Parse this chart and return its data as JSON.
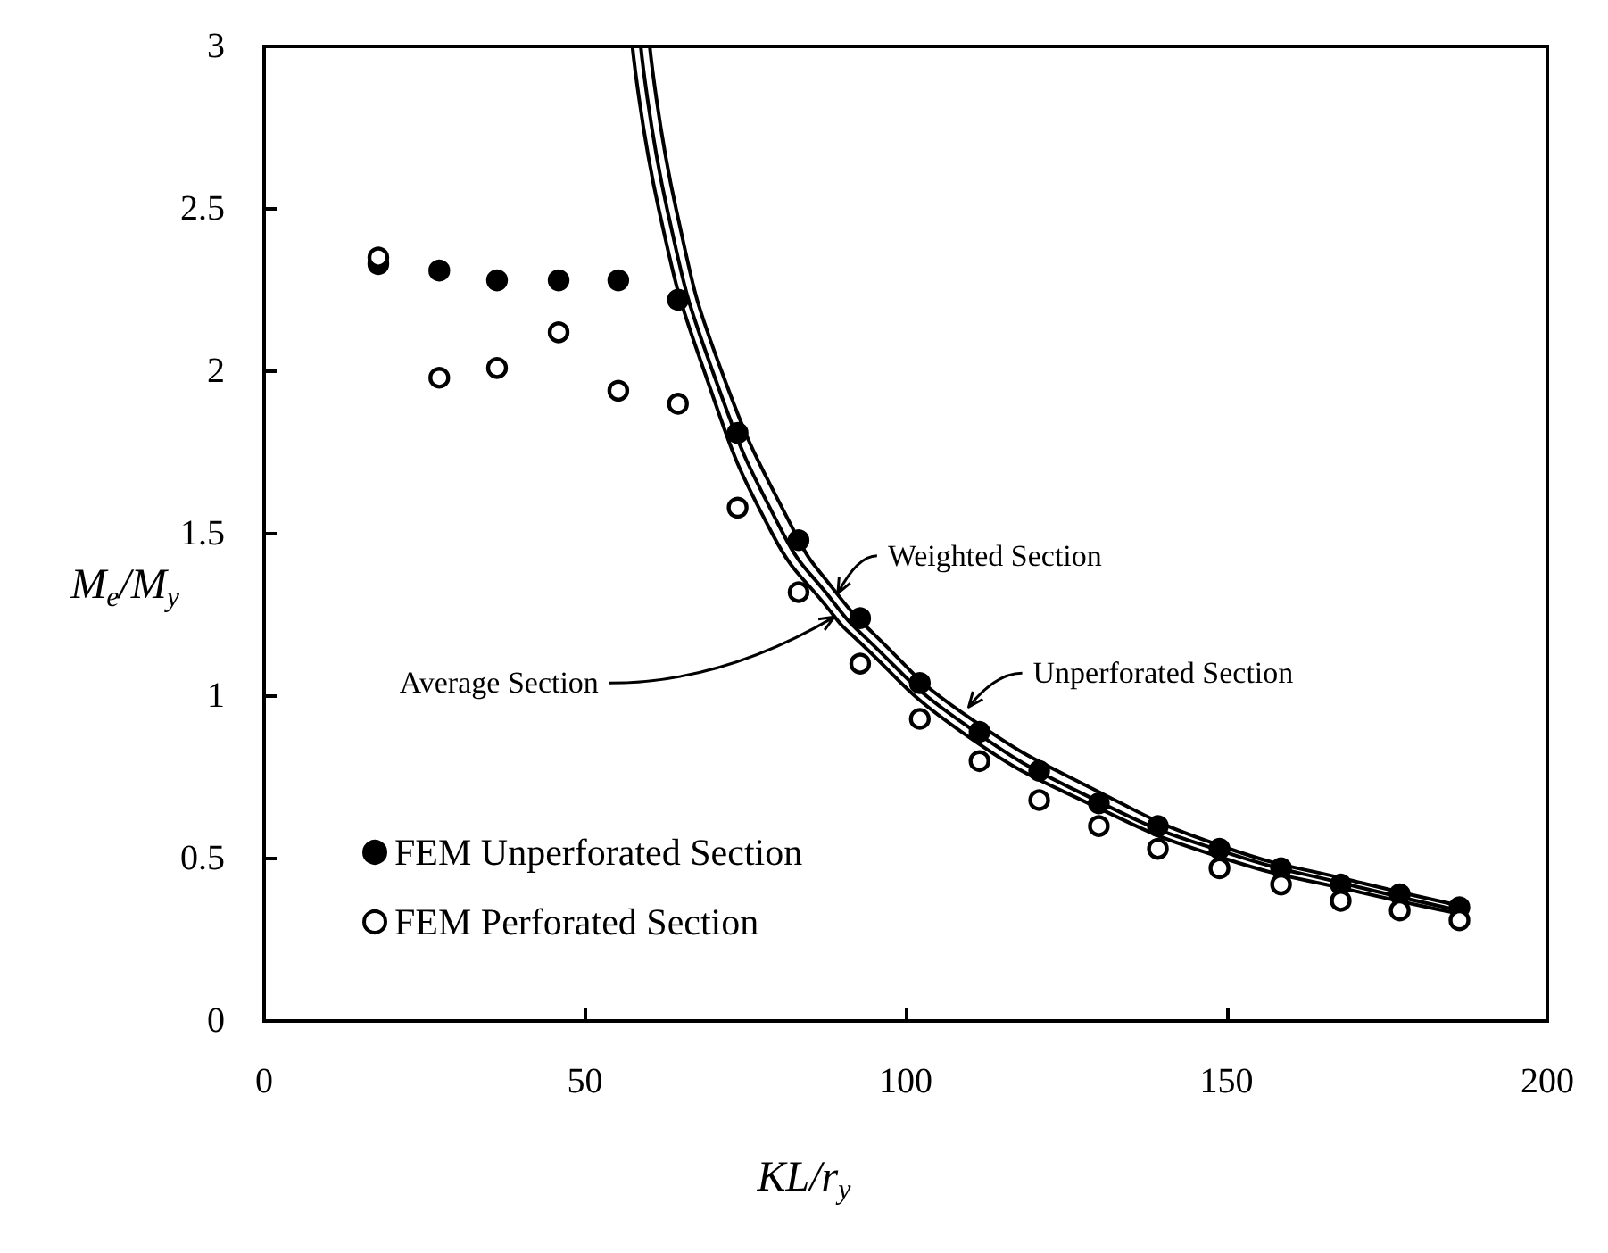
{
  "chart_data": {
    "type": "scatter",
    "xlabel": "KL/r$_{y}$",
    "ylabel": "M$_{e}$/M$_{y}$",
    "xlim": [
      0,
      200
    ],
    "xticks": [
      0,
      50,
      100,
      150,
      200
    ],
    "ylim": [
      0,
      3
    ],
    "yticks": [
      0,
      0.5,
      1,
      1.5,
      2,
      2.5,
      3
    ],
    "grid": false,
    "legend": "bottom left",
    "series": [
      {
        "name": "FEM Unperforated Section",
        "marker": "circle",
        "color": "#000000",
        "x": [
          17.8,
          27.3,
          36.3,
          45.9,
          55.2,
          64.5,
          73.8,
          83.3,
          92.9,
          102.2,
          111.5,
          120.8,
          130.1,
          139.3,
          148.9,
          158.5,
          167.8,
          177,
          186.3
        ],
        "values": [
          2.33,
          2.31,
          2.28,
          2.28,
          2.28,
          2.22,
          1.81,
          1.48,
          1.24,
          1.04,
          0.89,
          0.77,
          0.67,
          0.6,
          0.53,
          0.47,
          0.42,
          0.39,
          0.35
        ]
      },
      {
        "name": "FEM Perforated Section",
        "marker": "circle",
        "color": "#ffffff",
        "x": [
          17.8,
          27.3,
          36.3,
          45.9,
          55.2,
          64.5,
          73.8,
          83.3,
          92.9,
          102.2,
          111.5,
          120.8,
          130.1,
          139.3,
          148.9,
          158.5,
          167.8,
          177,
          186.3
        ],
        "values": [
          2.35,
          1.98,
          2.01,
          2.12,
          1.94,
          1.9,
          1.58,
          1.32,
          1.1,
          0.93,
          0.8,
          0.68,
          0.6,
          0.53,
          0.47,
          0.42,
          0.37,
          0.34,
          0.31
        ]
      },
      {
        "name": "Unperforated Section",
        "type": "line",
        "color": "#000000",
        "x": [
          60.1,
          64.2,
          71.3,
          82.8,
          88.3,
          95.1,
          108.7,
          130.6,
          149.7,
          170,
          186.3
        ],
        "values": [
          3,
          2.5,
          2,
          1.5,
          1.34,
          1.19,
          0.95,
          0.7,
          0.535,
          0.43,
          0.355
        ]
      },
      {
        "name": "Weighted Section",
        "type": "line",
        "color": "#000000",
        "x": [
          58.7,
          62.8,
          69.9,
          80.9,
          88.3,
          93.2,
          108.7,
          130.6,
          149.7,
          170,
          186.3
        ],
        "values": [
          3,
          2.5,
          2,
          1.5,
          1.3,
          1.19,
          0.92,
          0.67,
          0.52,
          0.415,
          0.34
        ]
      },
      {
        "name": "Average Section",
        "type": "line",
        "color": "#000000",
        "x": [
          57.4,
          61.5,
          68.6,
          79.2,
          88.3,
          91.5,
          108.7,
          130.6,
          149.7,
          170,
          186.3
        ],
        "values": [
          3,
          2.5,
          2,
          1.5,
          1.26,
          1.19,
          0.89,
          0.65,
          0.5,
          0.4,
          0.33
        ]
      }
    ]
  }
}
